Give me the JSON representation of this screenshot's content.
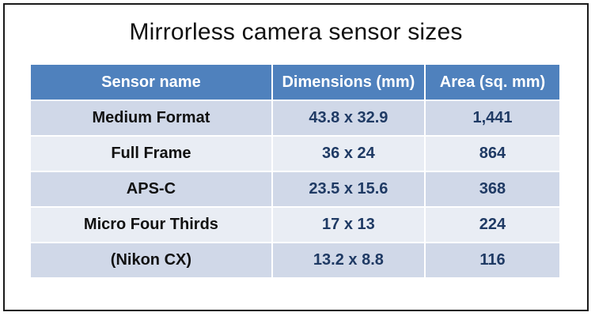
{
  "title": "Mirrorless camera sensor sizes",
  "table": {
    "headers": [
      "Sensor name",
      "Dimensions (mm)",
      "Area (sq. mm)"
    ],
    "rows": [
      {
        "name": "Medium Format",
        "dimensions": "43.8 x 32.9",
        "area": "1,441"
      },
      {
        "name": "Full Frame",
        "dimensions": "36 x 24",
        "area": "864"
      },
      {
        "name": "APS-C",
        "dimensions": "23.5 x 15.6",
        "area": "368"
      },
      {
        "name": "Micro Four Thirds",
        "dimensions": "17 x 13",
        "area": "224"
      },
      {
        "name": "(Nikon CX)",
        "dimensions": "13.2 x 8.8",
        "area": "116"
      }
    ]
  },
  "colors": {
    "header_bg": "#4f81bd",
    "row_band_dark": "#d0d8e8",
    "row_band_light": "#e9edf4",
    "value_text": "#1f3a64"
  }
}
